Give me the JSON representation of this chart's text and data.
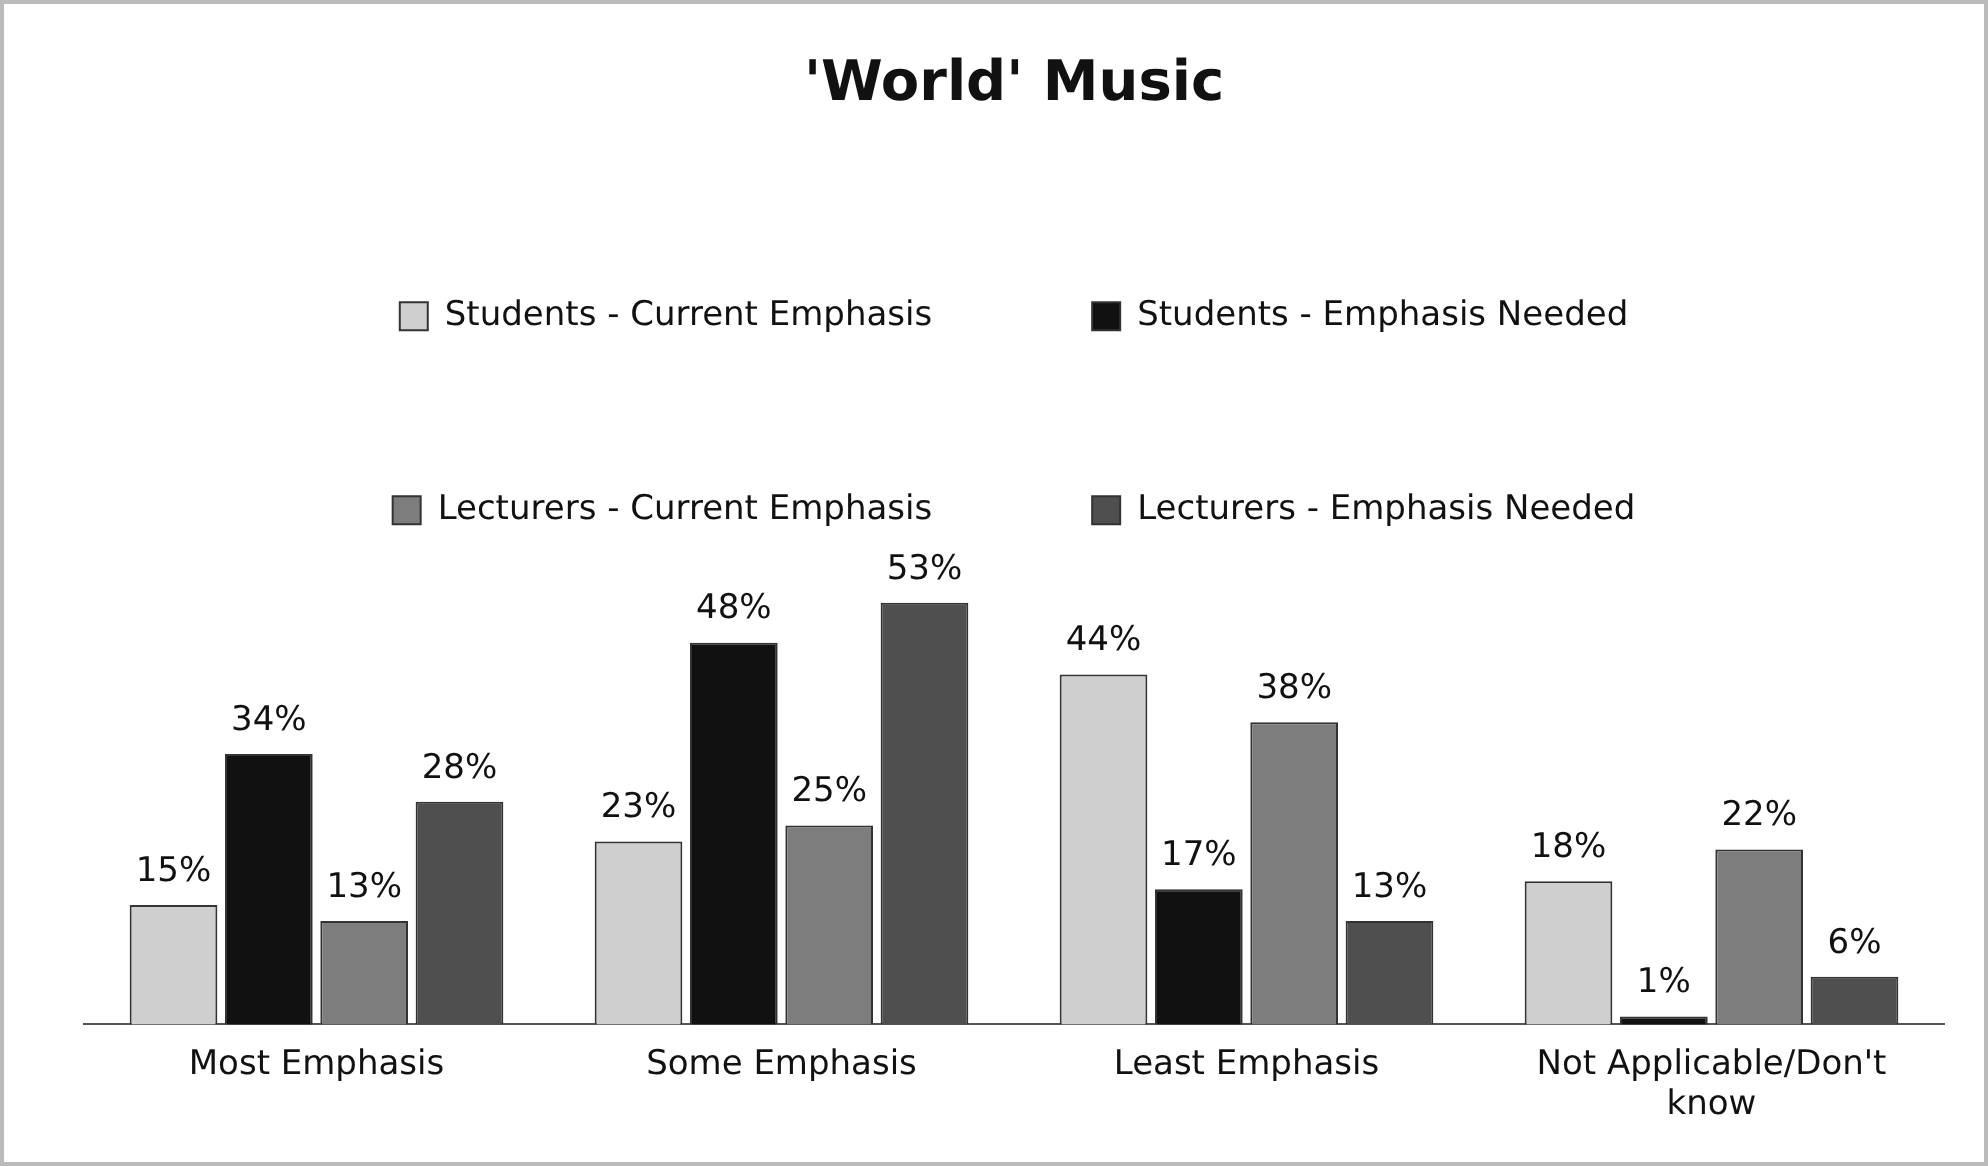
{
  "chart_data": {
    "type": "bar",
    "title": "'World' Music",
    "categories": [
      "Most Emphasis",
      "Some Emphasis",
      "Least Emphasis",
      "Not Applicable/Don't know"
    ],
    "legend": "top",
    "series": [
      {
        "name": "Students - Current Emphasis",
        "color": "#cfcfcf",
        "values": [
          15,
          23,
          44,
          18
        ],
        "value_labels": [
          "15%",
          "23%",
          "44%",
          "18%"
        ]
      },
      {
        "name": "Students - Emphasis Needed",
        "color": "#111111",
        "values": [
          34,
          48,
          17,
          1
        ],
        "value_labels": [
          "34%",
          "48%",
          "17%",
          "1%"
        ]
      },
      {
        "name": "Lecturers - Current Emphasis",
        "color": "#7d7d7d",
        "values": [
          13,
          25,
          38,
          22
        ],
        "value_labels": [
          "13%",
          "25%",
          "38%",
          "22%"
        ]
      },
      {
        "name": "Lecturers - Emphasis Needed",
        "color": "#4f4f4f",
        "values": [
          28,
          53,
          13,
          6
        ],
        "value_labels": [
          "28%",
          "53%",
          "13%",
          "6%"
        ]
      }
    ]
  }
}
